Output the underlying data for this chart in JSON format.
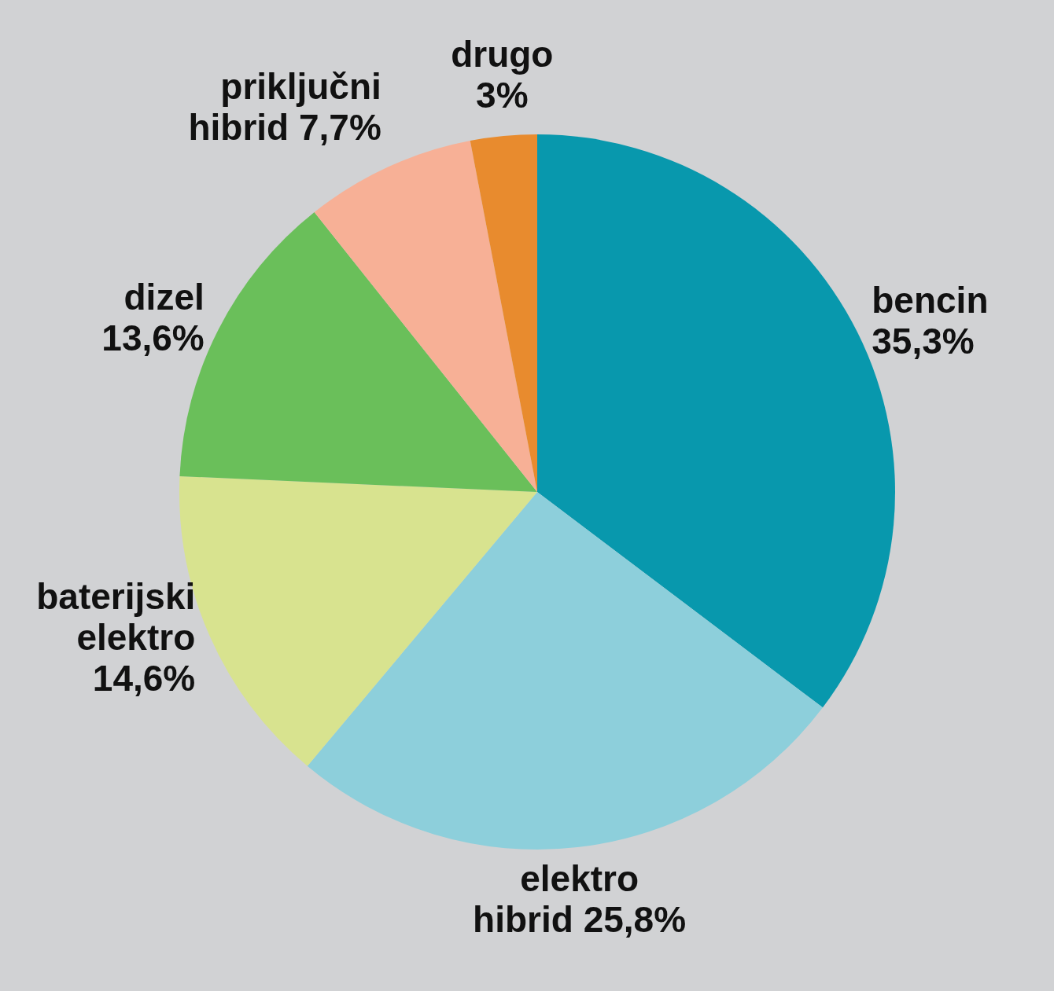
{
  "chart_data": {
    "type": "pie",
    "categories": [
      "bencin",
      "elektro hibrid",
      "baterijski elektro",
      "dizel",
      "priključni hibrid",
      "drugo"
    ],
    "values": [
      35.3,
      25.8,
      14.6,
      13.6,
      7.7,
      3
    ],
    "value_labels": [
      "35,3%",
      "25,8%",
      "14,6%",
      "13,6%",
      "7,7%",
      "3%"
    ],
    "colors": [
      "#0898ad",
      "#8dcfdb",
      "#d8e38f",
      "#6abf5a",
      "#f7b096",
      "#e88b2e"
    ],
    "legend": false
  }
}
